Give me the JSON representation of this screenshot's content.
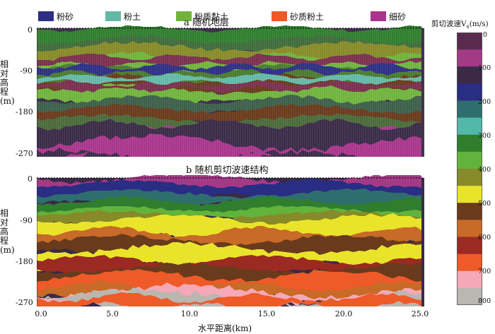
{
  "legend": {
    "items": [
      {
        "label": "粉砂",
        "color": "#2c2f84"
      },
      {
        "label": "粉土",
        "color": "#63b8a6"
      },
      {
        "label": "粉质黏土",
        "color": "#6fb33c"
      },
      {
        "label": "砂质粉土",
        "color": "#ed5a28"
      },
      {
        "label": "细砂",
        "color": "#a8358b"
      }
    ]
  },
  "panel_a": {
    "title": "a  随机地层",
    "ylabel": "相对高程(m)"
  },
  "panel_b": {
    "title": "b  随机剪切波速结构",
    "ylabel": "相对高程(m)"
  },
  "axes": {
    "y_ticks": [
      "0",
      "-90",
      "-180",
      "-270"
    ],
    "x_ticks": [
      "0.0",
      "5.0",
      "10.0",
      "15.0",
      "20.0",
      "25.0"
    ],
    "xlabel": "水平距离(km)"
  },
  "colorbar": {
    "title": "剪切波速V",
    "title_sub": "s",
    "title_unit": "(m/s)",
    "tick_labels": [
      "0",
      "100",
      "200",
      "300",
      "400",
      "500",
      "600",
      "700",
      "800"
    ],
    "colors": [
      "#5b2b4f",
      "#a33a86",
      "#3a2a48",
      "#2a2d84",
      "#2f6e6e",
      "#52b8a8",
      "#2f7e2e",
      "#62b33b",
      "#868a28",
      "#e9e42a",
      "#6a3a1c",
      "#c86a28",
      "#9a2a22",
      "#ee5a28",
      "#f4a8b8",
      "#bab6b0"
    ]
  },
  "chart_data": {
    "type": "heatmap",
    "panels": [
      {
        "name": "a",
        "title": "a  随机地层",
        "categories": [
          "粉砂",
          "粉土",
          "粉质黏土",
          "砂质粉土",
          "细砂"
        ],
        "ylim": [
          -270,
          0
        ],
        "xlim": [
          0,
          25
        ]
      },
      {
        "name": "b",
        "title": "b  随机剪切波速结构",
        "value_range": [
          0,
          800
        ],
        "unit": "m/s",
        "ylim": [
          -270,
          0
        ],
        "xlim": [
          0,
          25
        ]
      }
    ]
  }
}
